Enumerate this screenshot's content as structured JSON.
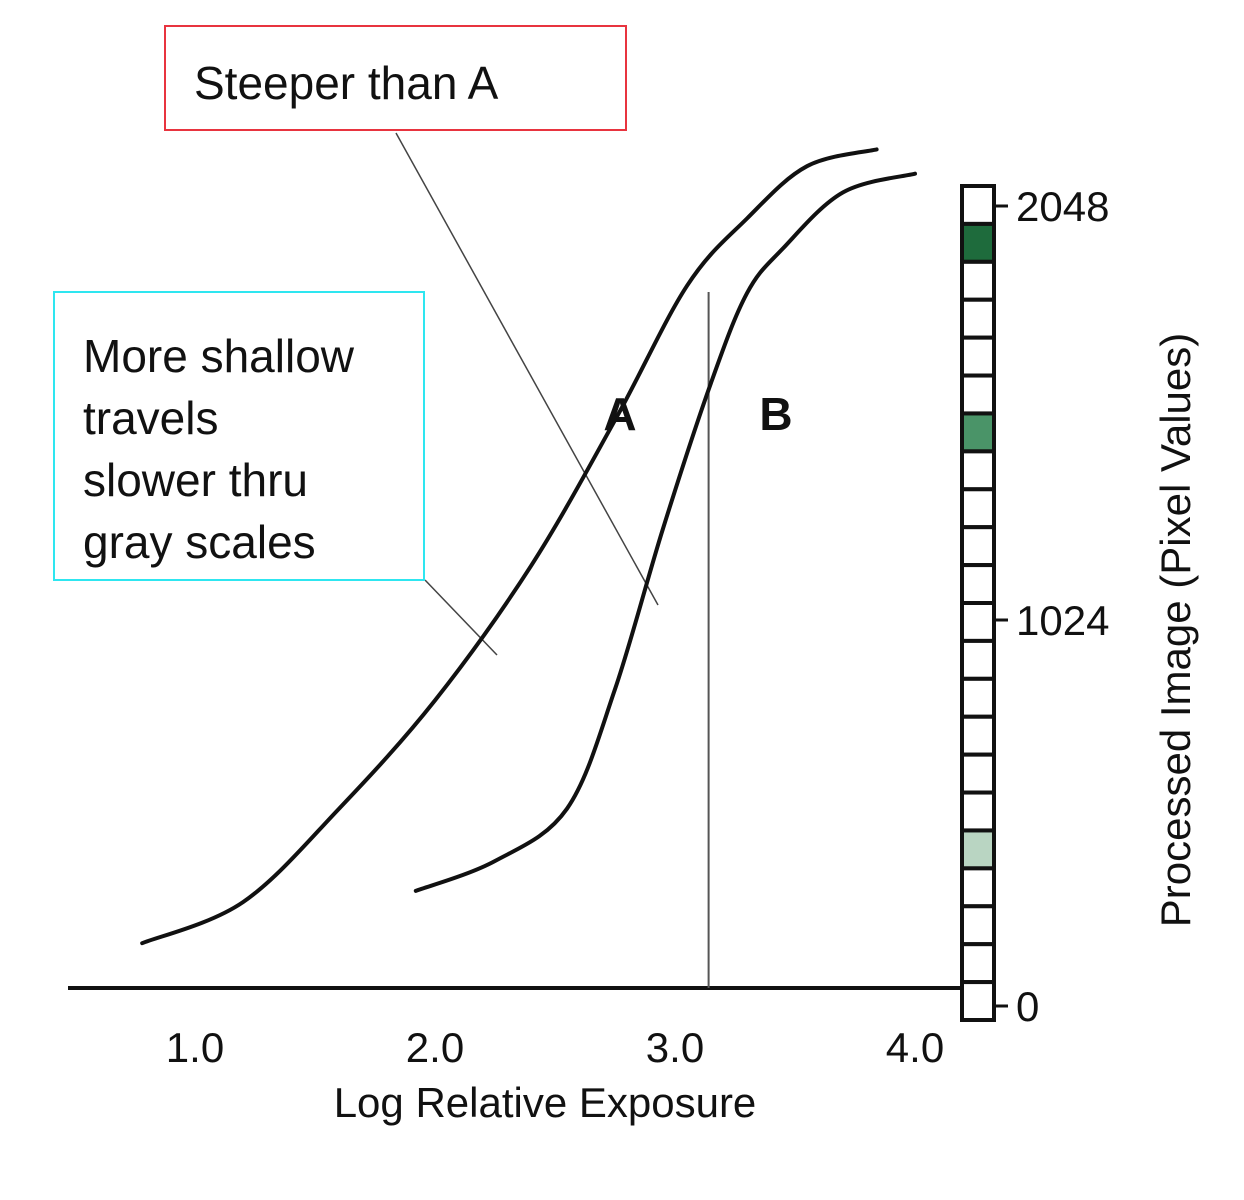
{
  "colors": {
    "curve": "#111111",
    "axis": "#111111",
    "reference_line": "#555555",
    "callout_red": "#e8343f",
    "callout_cyan": "#2ee6f0",
    "swatch_dark": "#1e6b3c",
    "swatch_mid": "#4a9468",
    "swatch_light": "#b9d5c2"
  },
  "annotations": {
    "steeper": "Steeper than A",
    "shallow": [
      "More shallow",
      "travels",
      "slower thru",
      "gray scales"
    ]
  },
  "chart_data": {
    "type": "line",
    "title": "",
    "xlabel": "Log Relative Exposure",
    "ylabel": "Processed Image (Pixel Values)",
    "xlim": [
      0.5,
      4.2
    ],
    "ylim": [
      0,
      2048
    ],
    "x_ticks": [
      "1.0",
      "2.0",
      "3.0",
      "4.0"
    ],
    "y_ticks": [
      "0",
      "1024",
      "2048"
    ],
    "grid": false,
    "reference_x": 3.14,
    "series": [
      {
        "name": "A",
        "x": [
          0.78,
          1.2,
          1.6,
          2.0,
          2.4,
          2.75,
          3.05,
          3.3,
          3.55,
          3.84
        ],
        "y": [
          120,
          230,
          480,
          770,
          1130,
          1520,
          1880,
          2060,
          2200,
          2245
        ]
      },
      {
        "name": "B",
        "x": [
          1.92,
          2.25,
          2.55,
          2.75,
          2.95,
          3.15,
          3.3,
          3.45,
          3.7,
          4.0
        ],
        "y": [
          260,
          340,
          480,
          800,
          1230,
          1620,
          1860,
          1980,
          2130,
          2180
        ]
      }
    ],
    "gray_scale_bar": {
      "steps": 22,
      "highlighted": [
        {
          "step": 1,
          "color": "#1e6b3c"
        },
        {
          "step": 6,
          "color": "#4a9468"
        },
        {
          "step": 17,
          "color": "#b9d5c2"
        }
      ]
    }
  }
}
